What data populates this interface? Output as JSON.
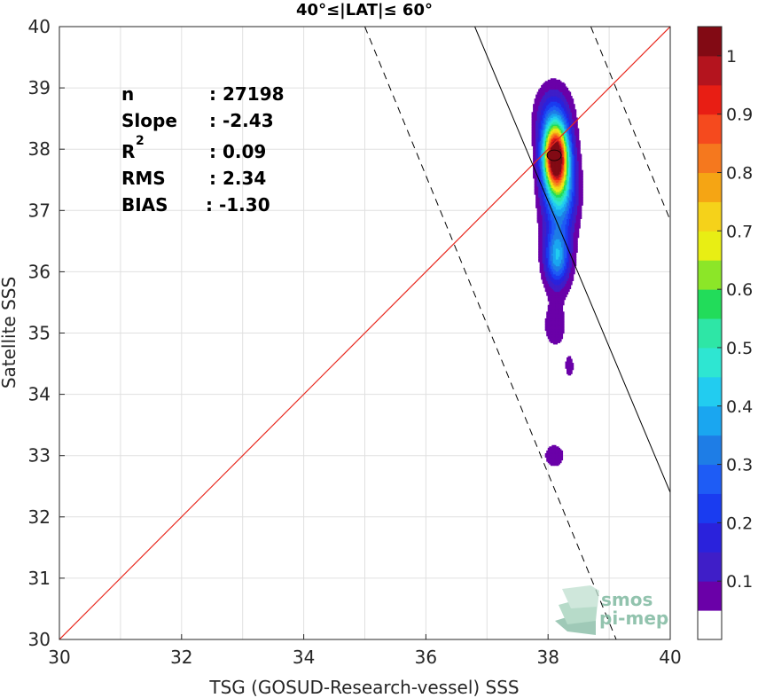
{
  "chart_data": {
    "type": "contour",
    "title": "40°≤|LAT|≤ 60°",
    "xlabel": "TSG (GOSUD-Research-vessel) SSS",
    "ylabel": "Satellite SSS",
    "xlim": [
      30,
      40
    ],
    "ylim": [
      30,
      40
    ],
    "x_ticks": [
      "30",
      "32",
      "34",
      "36",
      "38",
      "40"
    ],
    "y_ticks": [
      "30",
      "31",
      "32",
      "33",
      "34",
      "35",
      "36",
      "37",
      "38",
      "39",
      "40"
    ],
    "grid": true,
    "stats": {
      "labels": [
        "n",
        "Slope",
        "R",
        "RMS",
        "BIAS"
      ],
      "values": [
        ": 27198",
        ": -2.43",
        ": 0.09",
        ": 2.34",
        ": -1.30"
      ],
      "r_superscript": "2"
    },
    "identity_line": {
      "color": "#e8281e"
    },
    "regression_line": {
      "slope": -2.43,
      "x_at_y40": 36.8,
      "x_at_y32_4": 40.0
    },
    "band_lines": [
      {
        "x_at_y40": 35.0,
        "y_at_x38": 33.2
      },
      {
        "x_at_y40": 38.7,
        "x_at_y37": 40.0
      }
    ],
    "density_peak": {
      "x": 38.1,
      "y": 37.9
    },
    "density_field": {
      "cores": [
        {
          "x": 38.12,
          "y": 37.9,
          "sx": 0.14,
          "sy": 0.35,
          "weight": 1.0
        },
        {
          "x": 38.2,
          "y": 37.35,
          "sx": 0.17,
          "sy": 0.45,
          "weight": 0.35
        },
        {
          "x": 38.15,
          "y": 36.25,
          "sx": 0.13,
          "sy": 0.3,
          "weight": 0.32
        },
        {
          "x": 38.08,
          "y": 38.55,
          "sx": 0.2,
          "sy": 0.35,
          "weight": 0.18
        },
        {
          "x": 38.15,
          "y": 36.9,
          "sx": 0.22,
          "sy": 1.0,
          "weight": 0.09
        },
        {
          "x": 38.1,
          "y": 35.1,
          "sx": 0.13,
          "sy": 0.25,
          "weight": 0.07
        },
        {
          "x": 38.35,
          "y": 34.45,
          "sx": 0.1,
          "sy": 0.25,
          "weight": 0.055
        },
        {
          "x": 38.45,
          "y": 33.8,
          "sx": 0.07,
          "sy": 0.09,
          "weight": 0.045
        },
        {
          "x": 38.1,
          "y": 33.0,
          "sx": 0.12,
          "sy": 0.14,
          "weight": 0.1
        }
      ]
    },
    "colorbar": {
      "ticks": [
        "0.1",
        "0.2",
        "0.3",
        "0.4",
        "0.5",
        "0.6",
        "0.7",
        "0.8",
        "0.9",
        "1"
      ],
      "levels": [
        0.05,
        0.1,
        0.15,
        0.2,
        0.25,
        0.3,
        0.35,
        0.4,
        0.45,
        0.5,
        0.55,
        0.6,
        0.65,
        0.7,
        0.75,
        0.8,
        0.85,
        0.9,
        0.95,
        1.0
      ],
      "colors": [
        "#ffffff",
        "#6a00a8",
        "#3f1ec8",
        "#2a22dc",
        "#1a3cf0",
        "#1e5cf5",
        "#1e7de6",
        "#1aa6f0",
        "#22ccf0",
        "#2ee6d2",
        "#2ee6a6",
        "#22dc5a",
        "#8ce628",
        "#e8ee14",
        "#f5d21a",
        "#f5a514",
        "#f5781e",
        "#f54a1e",
        "#e81e14",
        "#b4141e",
        "#820a14"
      ]
    }
  },
  "logo": {
    "line1": "smos",
    "line2": "pi-mep",
    "color": "#7fb8a0"
  }
}
